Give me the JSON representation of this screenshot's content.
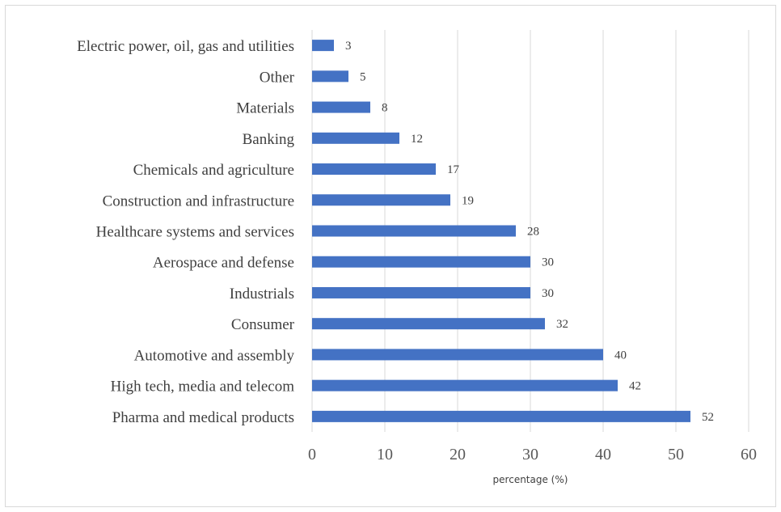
{
  "chart_data": {
    "type": "bar",
    "orientation": "horizontal",
    "title": "",
    "xlabel": "percentage (%)",
    "ylabel": "",
    "xlim": [
      0,
      60
    ],
    "xticks": [
      0,
      10,
      20,
      30,
      40,
      50,
      60
    ],
    "grid": "vertical",
    "legend": "none",
    "bar_color": "#4472C4",
    "categories": [
      "Pharma and medical products",
      "High tech, media and telecom",
      "Automotive and assembly",
      "Consumer",
      "Industrials",
      "Aerospace and defense",
      "Healthcare systems and services",
      "Construction and infrastructure",
      "Chemicals and agriculture",
      "Banking",
      "Materials",
      "Other",
      "Electric power, oil, gas and utilities"
    ],
    "values": [
      52,
      42,
      40,
      32,
      30,
      30,
      28,
      19,
      17,
      12,
      8,
      5,
      3
    ]
  }
}
